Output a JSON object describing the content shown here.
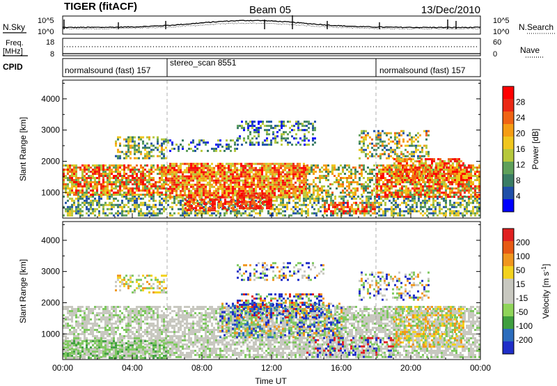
{
  "header": {
    "station": "TIGER (fitACF)",
    "beam": "Beam 05",
    "date": "13/Dec/2010"
  },
  "noise_panel": {
    "left_label": "N.Sky",
    "right_label": "N.Search",
    "left_ticks": [
      "10^5",
      "10^0"
    ],
    "right_ticks": [
      "10^5",
      "10^0"
    ]
  },
  "freq_panel": {
    "left_label_1": "Freq.",
    "left_label_2": "[MHz]",
    "right_label": "Nave",
    "left_ticks": [
      "18",
      "8"
    ],
    "right_ticks": [
      "60",
      "0"
    ]
  },
  "cpid_panel": {
    "label": "CPID",
    "segments": [
      {
        "name": "normalsound (fast) 157",
        "start_hour": 0,
        "end_hour": 6
      },
      {
        "name": "stereo_scan 8551",
        "start_hour": 6,
        "end_hour": 18
      },
      {
        "name": "normalsound (fast) 157",
        "start_hour": 18,
        "end_hour": 24
      }
    ]
  },
  "chart_data": [
    {
      "type": "heatmap",
      "panel": "power",
      "ylabel": "Slant Range [km]",
      "y_ticks": [
        1000,
        2000,
        3000,
        4000
      ],
      "ylim": [
        180,
        4600
      ],
      "xlim_hours": [
        0,
        24
      ],
      "colorbar": {
        "label": "Power [dB]",
        "ticks": [
          4,
          8,
          12,
          16,
          20,
          24,
          28
        ],
        "colors": [
          "#0000ff",
          "#1f4fa8",
          "#3a7d64",
          "#5fa05a",
          "#b6c83c",
          "#f0c61e",
          "#f59d14",
          "#f06414",
          "#eb2814",
          "#ff0000"
        ]
      }
    },
    {
      "type": "heatmap",
      "panel": "velocity",
      "ylabel": "Slant Range [km]",
      "y_ticks": [
        1000,
        2000,
        3000,
        4000
      ],
      "ylim": [
        180,
        4600
      ],
      "xlim_hours": [
        0,
        24
      ],
      "xlabel": "Time UT",
      "x_tick_labels": [
        "00:00",
        "04:00",
        "08:00",
        "12:00",
        "16:00",
        "20:00",
        "00:00"
      ],
      "colorbar": {
        "label": "Velocity [m s",
        "label_superscript": "-1",
        "label_close": "]",
        "ticks": [
          "200",
          "100",
          "50",
          "15",
          "-15",
          "-50",
          "-100",
          "-200"
        ],
        "colors": [
          "#1f2ec8",
          "#2c6dbd",
          "#3f9f3f",
          "#8fd45a",
          "#c8c8c0",
          "#c8c8c0",
          "#f3d21e",
          "#f0961e",
          "#e75a14",
          "#e02020"
        ]
      }
    }
  ]
}
